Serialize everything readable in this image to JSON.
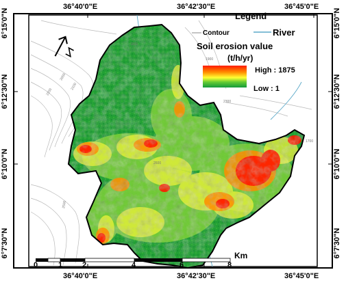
{
  "map": {
    "top_ticks": [
      "36°40'0\"E",
      "36°42'30\"E",
      "36°45'0\"E"
    ],
    "bottom_ticks": [
      "36°40'0\"E",
      "36°42'30\"E",
      "36°45'0\"E"
    ],
    "left_ticks": [
      "6°15'0\"N",
      "6°12'30\"N",
      "6°10'0\"N",
      "6°7'30\"N"
    ],
    "right_ticks": [
      "6°15'0\"N",
      "6°12'30\"N",
      "6°10'0\"N",
      "6°7'30\"N"
    ]
  },
  "legend": {
    "title": "Legend",
    "contour_label": "Contour",
    "river_label": "River",
    "subtitle": "Soil erosion value",
    "unit": "(t/h/yr)",
    "high_label": "High : 1875",
    "low_label": "Low : 1",
    "high_value": 1875,
    "low_value": 1,
    "ramp_colors": [
      "#ff1a00",
      "#ff8c00",
      "#ffff33",
      "#66cc33",
      "#139a3a"
    ]
  },
  "scalebar": {
    "labels": [
      "0",
      "1",
      "2",
      "4",
      "6",
      "8"
    ],
    "unit": "Km"
  },
  "contour_labels": [
    "1800",
    "2000",
    "2100",
    "2200",
    "2500",
    "1900",
    "2300",
    "2600",
    "1700"
  ],
  "colors": {
    "low": "#139a3a",
    "mid": "#66cc33",
    "moderate": "#e8f03a",
    "high": "#ff1a00",
    "contour": "#b0b0b0",
    "river": "#5aa8c8"
  }
}
